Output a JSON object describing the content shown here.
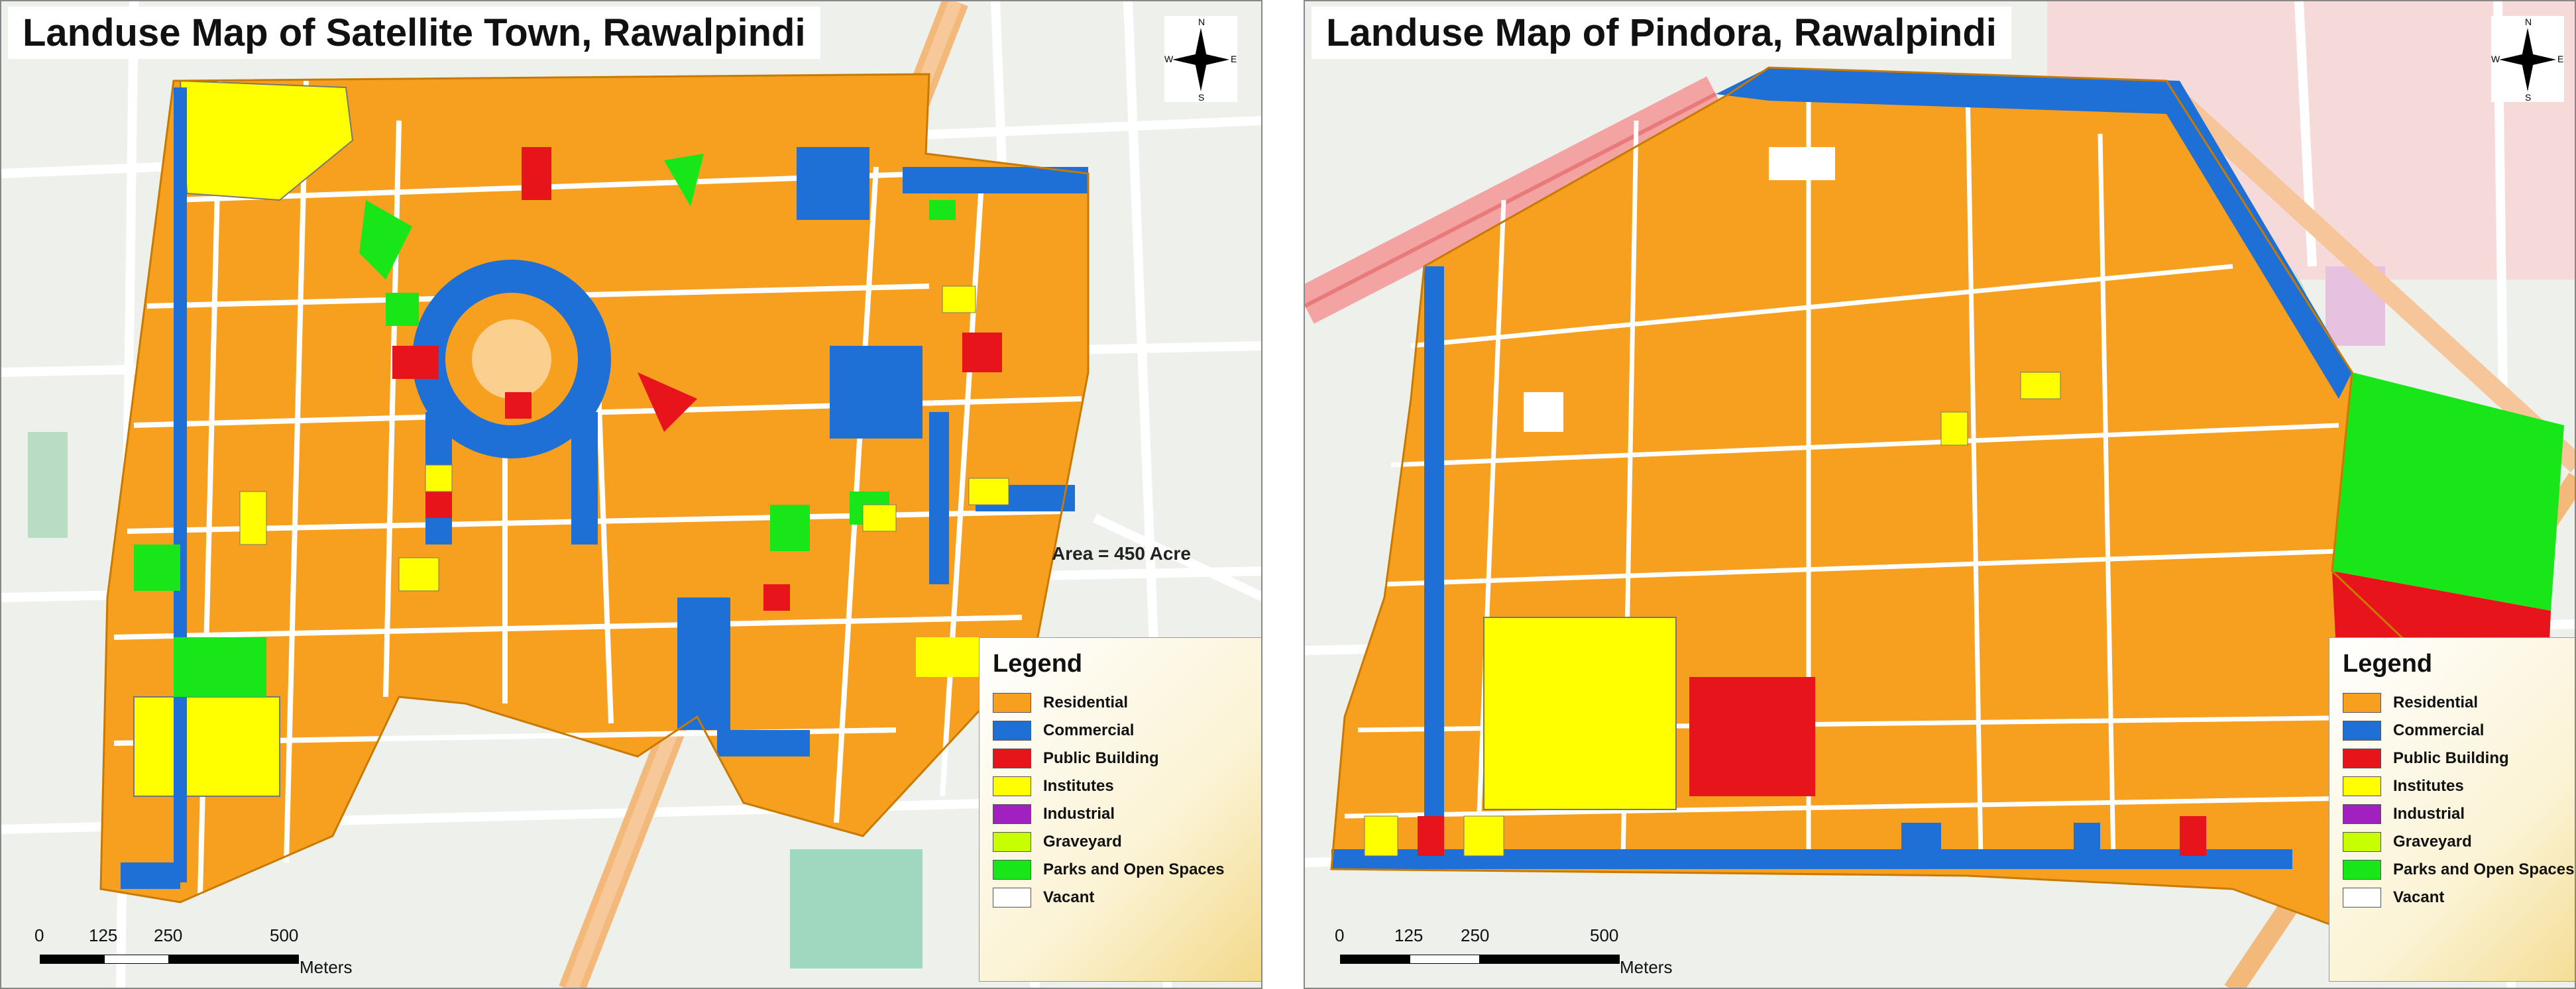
{
  "maps": [
    {
      "title": "Landuse Map of Satellite Town, Rawalpindi",
      "area_label": "Area = 450 Acre",
      "legend": {
        "title": "Legend",
        "items": [
          {
            "label": "Residential",
            "color": "#f7a01f"
          },
          {
            "label": "Commercial",
            "color": "#1e6fd6"
          },
          {
            "label": "Public Building",
            "color": "#e8141b"
          },
          {
            "label": "Institutes",
            "color": "#ffff00"
          },
          {
            "label": "Industrial",
            "color": "#a020c0"
          },
          {
            "label": "Graveyard",
            "color": "#c8ff00"
          },
          {
            "label": "Parks and Open Spaces",
            "color": "#19e619"
          },
          {
            "label": "Vacant",
            "color": "#ffffff"
          }
        ]
      },
      "scale": {
        "ticks": [
          "0",
          "125",
          "250",
          "500"
        ],
        "units": "Meters"
      },
      "north_arrow": {
        "n": "N",
        "s": "S",
        "e": "E",
        "w": "W"
      }
    },
    {
      "title": "Landuse Map of Pindora, Rawalpindi",
      "legend": {
        "title": "Legend",
        "items": [
          {
            "label": "Residential",
            "color": "#f7a01f"
          },
          {
            "label": "Commercial",
            "color": "#1e6fd6"
          },
          {
            "label": "Public Building",
            "color": "#e8141b"
          },
          {
            "label": "Institutes",
            "color": "#ffff00"
          },
          {
            "label": "Industrial",
            "color": "#a020c0"
          },
          {
            "label": "Graveyard",
            "color": "#c8ff00"
          },
          {
            "label": "Parks and Open Spaces",
            "color": "#19e619"
          },
          {
            "label": "Vacant",
            "color": "#ffffff"
          }
        ]
      },
      "scale": {
        "ticks": [
          "0",
          "125",
          "250",
          "500"
        ],
        "units": "Meters"
      },
      "north_arrow": {
        "n": "N",
        "s": "S",
        "e": "E",
        "w": "W"
      }
    }
  ]
}
